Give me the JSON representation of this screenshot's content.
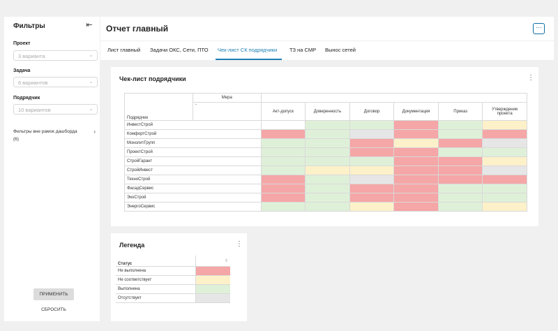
{
  "sidebar": {
    "title": "Фильтры",
    "filters": [
      {
        "label": "Проект",
        "value": "3 варианта"
      },
      {
        "label": "Задача",
        "value": "6 вариантов"
      },
      {
        "label": "Подрядчик",
        "value": "10 вариантов"
      }
    ],
    "extra_filters": "Фильтры вне рамок дашборда (6)",
    "apply_label": "ПРИМЕНИТЬ",
    "reset_label": "СБРОСИТЬ"
  },
  "header": {
    "title": "Отчет главный",
    "more_icon": "ellipsis-icon"
  },
  "tabs": [
    {
      "label": "Лист главный"
    },
    {
      "label": "Задачи ОКС, Сети, ПТО"
    },
    {
      "label": "Чек-лист СК подрядчики",
      "active": true
    },
    {
      "label": "ТЗ на СМР"
    },
    {
      "label": "Вынос сетей"
    }
  ],
  "checklist": {
    "title": "Чек-лист подрядчики",
    "measure_label": "Мера",
    "measure_dash": "-",
    "row_header": "Подрядчик",
    "columns": [
      "Акт-допуск",
      "Доверенность",
      "Договор",
      "Документация",
      "Приказ",
      "Утверждение проекта"
    ],
    "rows": [
      {
        "name": "ИнвестСтрой",
        "status": [
          "white",
          "green",
          "green",
          "red",
          "green",
          "yellow"
        ]
      },
      {
        "name": "КомфортСтрой",
        "status": [
          "red",
          "green",
          "grey",
          "red",
          "green",
          "red"
        ]
      },
      {
        "name": "МонолитГрупп",
        "status": [
          "green",
          "green",
          "red",
          "yellow",
          "red",
          "grey"
        ]
      },
      {
        "name": "ПроектСтрой",
        "status": [
          "green",
          "green",
          "red",
          "red",
          "green",
          "green"
        ]
      },
      {
        "name": "СтройГарант",
        "status": [
          "green",
          "green",
          "green",
          "red",
          "red",
          "yellow"
        ]
      },
      {
        "name": "СтройИнвест",
        "status": [
          "green",
          "yellow",
          "yellow",
          "red",
          "red",
          "grey"
        ]
      },
      {
        "name": "ТехноСтрой",
        "status": [
          "red",
          "green",
          "grey",
          "red",
          "red",
          "red"
        ]
      },
      {
        "name": "ФасадСервис",
        "status": [
          "red",
          "green",
          "red",
          "red",
          "green",
          "green"
        ]
      },
      {
        "name": "ЭкоСтрой",
        "status": [
          "red",
          "green",
          "red",
          "red",
          "green",
          "green"
        ]
      },
      {
        "name": "ЭнергоСервис",
        "status": [
          "green",
          "green",
          "yellow",
          "red",
          "green",
          "yellow"
        ]
      }
    ]
  },
  "legend": {
    "title": "Легенда",
    "status_header": "Статус",
    "items": [
      {
        "label": "Не выполнена",
        "color": "#f5a6a6"
      },
      {
        "label": "Не соответствует",
        "color": "#fdf1c9"
      },
      {
        "label": "Выполнена",
        "color": "#dff0d8"
      },
      {
        "label": "Отсутствует",
        "color": "#e6e6e6"
      }
    ]
  },
  "colors": {
    "accent": "#1c7fb3",
    "red": "#f5a6a6",
    "yellow": "#fdf1c9",
    "green": "#dff0d8",
    "grey": "#e6e6e6"
  }
}
